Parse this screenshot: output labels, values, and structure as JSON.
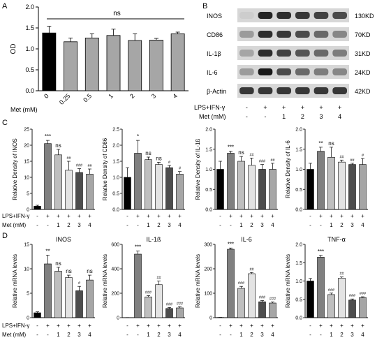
{
  "panel_letters": {
    "a": "A",
    "b": "B",
    "c": "C",
    "d": "D"
  },
  "colors": {
    "black": "#000000",
    "dark": "#4d4d4d",
    "mid": "#808080",
    "light": "#bfbfbf",
    "pale": "#e3e3e3",
    "grey": "#a6a6a6",
    "blot_bg": "#d7d7d7"
  },
  "treatment_rows": {
    "lps_label": "LPS+IFN-γ",
    "met_label": "Met (mM)",
    "lps_signs": [
      "-",
      "+",
      "+",
      "+",
      "+",
      "+"
    ],
    "met_values": [
      "-",
      "-",
      "1",
      "2",
      "3",
      "4"
    ]
  },
  "chart_data": [
    {
      "id": "A",
      "type": "bar",
      "ylabel": "OD",
      "xlabel": "Met (mM)",
      "categories": [
        "0",
        "0.25",
        "0.5",
        "1",
        "2",
        "3",
        "4"
      ],
      "values": [
        1.38,
        1.17,
        1.26,
        1.32,
        1.2,
        1.21,
        1.36
      ],
      "errors": [
        0.16,
        0.09,
        0.1,
        0.15,
        0.16,
        0.04,
        0.04
      ],
      "yticks": [
        "0.0",
        "0.5",
        "1.0",
        "1.5",
        "2.0"
      ],
      "ylim": [
        0,
        2.0
      ],
      "colors": [
        "#000000",
        "#a6a6a6",
        "#a6a6a6",
        "#a6a6a6",
        "#a6a6a6",
        "#a6a6a6",
        "#a6a6a6"
      ],
      "annotation": "ns"
    },
    {
      "id": "B",
      "type": "blot",
      "bands": [
        {
          "name": "INOS",
          "size": "130KD",
          "intensity": [
            0.05,
            0.9,
            0.85,
            0.8,
            0.75,
            0.7
          ]
        },
        {
          "name": "CD86",
          "size": "70KD",
          "intensity": [
            0.3,
            0.85,
            0.8,
            0.7,
            0.55,
            0.4
          ]
        },
        {
          "name": "IL-1β",
          "size": "31KD",
          "intensity": [
            0.25,
            0.85,
            0.75,
            0.65,
            0.55,
            0.45
          ]
        },
        {
          "name": "IL-6",
          "size": "24KD",
          "intensity": [
            0.3,
            0.95,
            0.7,
            0.55,
            0.45,
            0.4
          ]
        },
        {
          "name": "β-Actin",
          "size": "42KD",
          "intensity": [
            0.8,
            0.8,
            0.8,
            0.8,
            0.8,
            0.8
          ]
        }
      ]
    },
    {
      "id": "C1",
      "type": "bar",
      "ylabel": "Relative Density of INOS",
      "values": [
        1.0,
        20.5,
        17.0,
        12.2,
        11.5,
        11.0
      ],
      "errors": [
        0.3,
        1.0,
        1.7,
        2.8,
        1.2,
        1.6
      ],
      "ylim": [
        0,
        25
      ],
      "yticks": [
        "0",
        "5",
        "10",
        "15",
        "20",
        "25"
      ],
      "annotations": [
        "",
        "***",
        "ns",
        "##",
        "###",
        "##"
      ]
    },
    {
      "id": "C2",
      "type": "bar",
      "ylabel": "Relative Density of CD86",
      "values": [
        1.0,
        1.75,
        1.55,
        1.4,
        1.3,
        1.1
      ],
      "errors": [
        0.3,
        0.4,
        0.08,
        0.07,
        0.07,
        0.08
      ],
      "ylim": [
        0,
        2.5
      ],
      "yticks": [
        "0.0",
        "0.5",
        "1.0",
        "1.5",
        "2.0",
        "2.5"
      ],
      "annotations": [
        "",
        "*",
        "ns",
        "ns",
        "#",
        "#"
      ]
    },
    {
      "id": "C3",
      "type": "bar",
      "ylabel": "Relative Density of IL-1ß",
      "values": [
        1.0,
        1.4,
        1.2,
        1.1,
        1.0,
        1.0
      ],
      "errors": [
        0.2,
        0.05,
        0.12,
        0.18,
        0.12,
        0.15
      ],
      "ylim": [
        0,
        2.0
      ],
      "yticks": [
        "0.0",
        "0.5",
        "1.0",
        "1.5",
        "2.0"
      ],
      "annotations": [
        "",
        "***",
        "ns",
        "##",
        "###",
        "##"
      ]
    },
    {
      "id": "C4",
      "type": "bar",
      "ylabel": "Relative Density of IL-6",
      "values": [
        1.0,
        1.45,
        1.3,
        1.18,
        1.12,
        1.12
      ],
      "errors": [
        0.15,
        0.1,
        0.25,
        0.05,
        0.03,
        0.15
      ],
      "ylim": [
        0,
        2.0
      ],
      "yticks": [
        "0.0",
        "0.5",
        "1.0",
        "1.5",
        "2.0"
      ],
      "annotations": [
        "",
        "**",
        "ns",
        "##",
        "##",
        "#"
      ]
    },
    {
      "id": "D1",
      "type": "bar",
      "ylabel": "Relative mRNA levels",
      "title": "INOS",
      "values": [
        1.0,
        11.0,
        9.5,
        8.2,
        5.5,
        7.7
      ],
      "errors": [
        0.2,
        1.8,
        0.8,
        0.5,
        0.9,
        1.0
      ],
      "ylim": [
        0,
        15
      ],
      "yticks": [
        "0",
        "5",
        "10",
        "15"
      ],
      "annotations": [
        "",
        "**",
        "ns",
        "ns",
        "#",
        "ns"
      ]
    },
    {
      "id": "D2",
      "type": "bar",
      "ylabel": "Relative mRNA levels",
      "title": "IL-1ß",
      "values": [
        1.0,
        520,
        170,
        270,
        75,
        80
      ],
      "errors": [
        0.3,
        25,
        10,
        30,
        8,
        10
      ],
      "ylim": [
        0,
        600
      ],
      "yticks": [
        "0",
        "200",
        "400",
        "600"
      ],
      "annotations": [
        "",
        "***",
        "###",
        "##",
        "###",
        "###"
      ]
    },
    {
      "id": "D3",
      "type": "bar",
      "ylabel": "Relative mRNA levels",
      "title": "IL-6",
      "values": [
        1.0,
        280,
        120,
        180,
        65,
        60
      ],
      "errors": [
        0.3,
        5,
        8,
        5,
        5,
        4
      ],
      "ylim": [
        0,
        300
      ],
      "yticks": [
        "0",
        "100",
        "200",
        "300"
      ],
      "annotations": [
        "",
        "***",
        "###",
        "##",
        "###",
        "###"
      ]
    },
    {
      "id": "D4",
      "type": "bar",
      "ylabel": "Relative mRNA levels",
      "title": "TNF-α",
      "values": [
        1.0,
        1.65,
        0.63,
        1.08,
        0.48,
        0.55
      ],
      "errors": [
        0.07,
        0.05,
        0.04,
        0.03,
        0.03,
        0.02
      ],
      "ylim": [
        0,
        2.0
      ],
      "yticks": [
        "0.0",
        "0.5",
        "1.0",
        "1.5",
        "2.0"
      ],
      "annotations": [
        "",
        "***",
        "###",
        "##",
        "###",
        "###"
      ]
    }
  ]
}
